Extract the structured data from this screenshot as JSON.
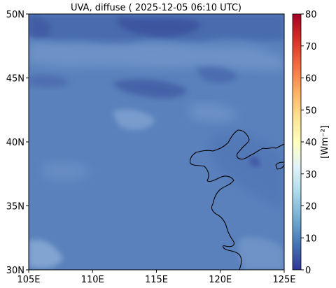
{
  "title": "UVA, diffuse ( 2025-12-05 06:10 UTC)",
  "map": {
    "lon_range": [
      105,
      125
    ],
    "lat_range": [
      30,
      50
    ],
    "x_ticks": [
      "105E",
      "110E",
      "115E",
      "120E",
      "125E"
    ],
    "y_ticks": [
      "50N",
      "45N",
      "40N",
      "35N",
      "30N"
    ],
    "background_color": "#5a81bc"
  },
  "colorbar": {
    "label": "[Wm⁻²]",
    "min": 0,
    "max": 80,
    "ticks": [
      "80",
      "70",
      "60",
      "50",
      "40",
      "30",
      "20",
      "10",
      "0"
    ],
    "colormap": "RdYlBu_r",
    "colors": [
      "#313695",
      "#4575b4",
      "#74add1",
      "#abd9e9",
      "#e0f3f8",
      "#ffffbf",
      "#fee090",
      "#fdae61",
      "#f46d43",
      "#d73027",
      "#a50026"
    ]
  }
}
